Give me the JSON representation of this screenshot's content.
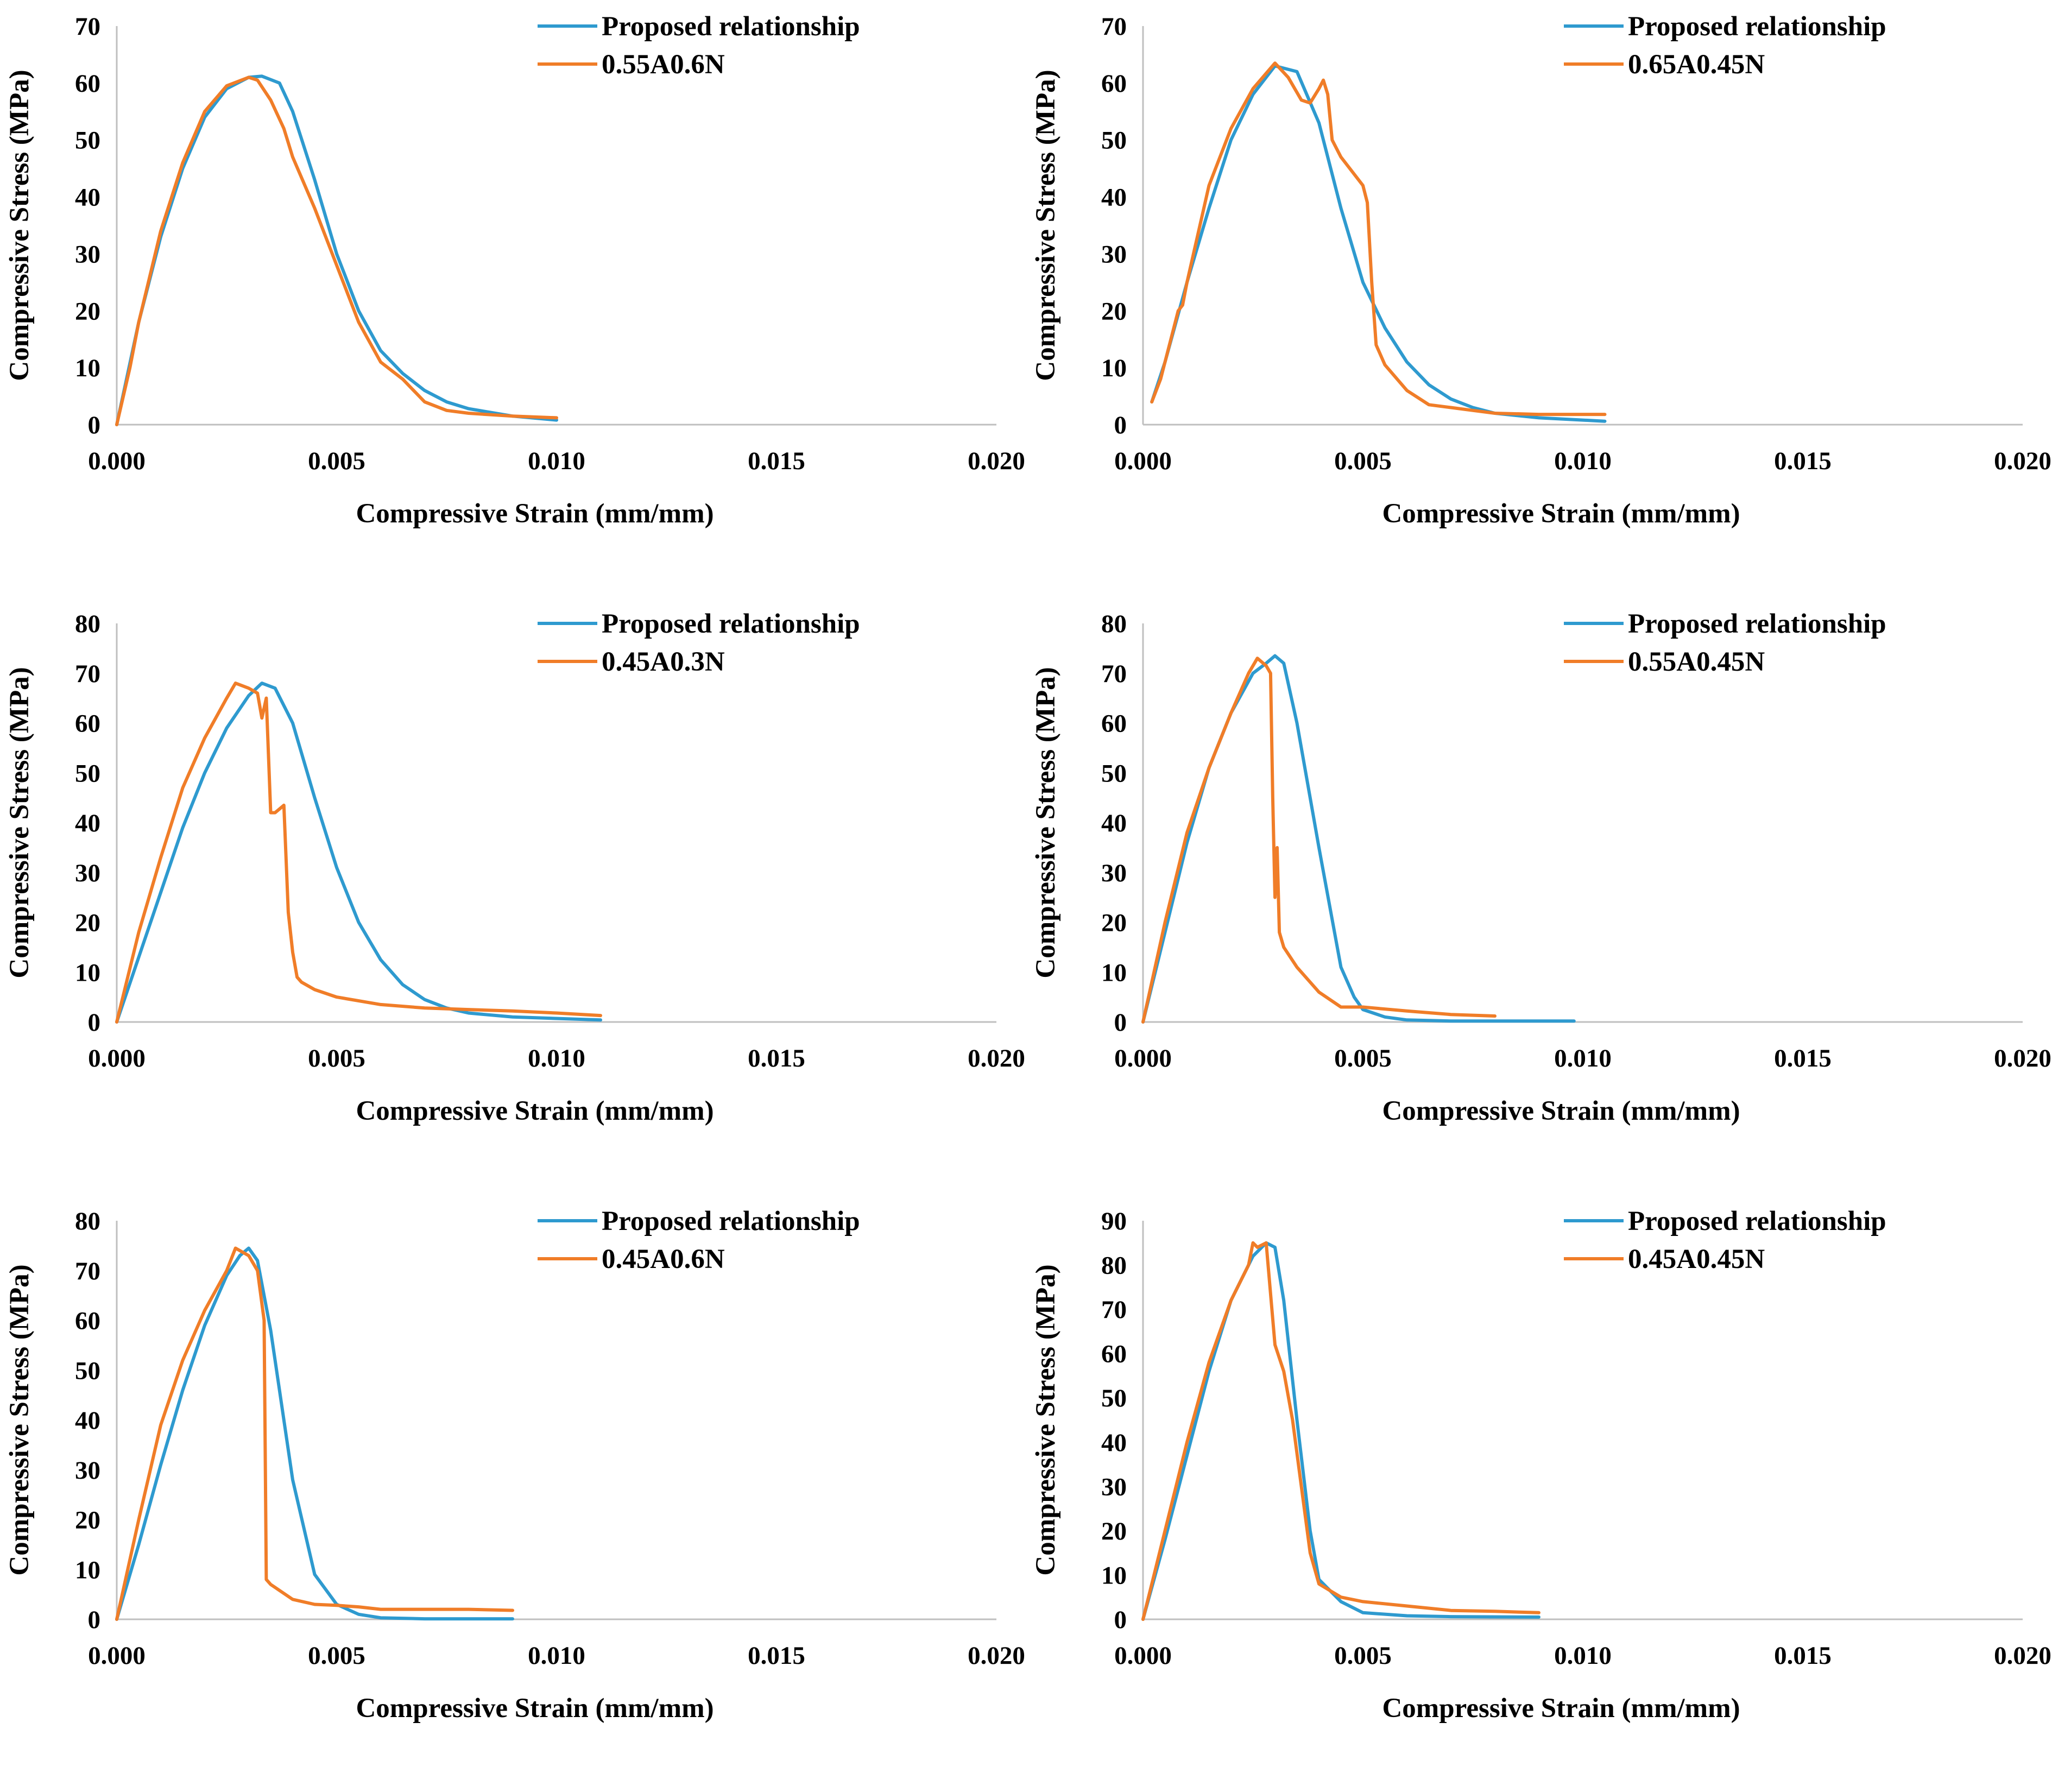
{
  "colors": {
    "proposed": "#2E9ACF",
    "experimental": "#F07D28",
    "axis": "#BFBFBF",
    "text": "#000000"
  },
  "chart_data": [
    {
      "type": "line",
      "xlabel": "Compressive Strain (mm/mm)",
      "ylabel": "Compressive Stress (MPa)",
      "xlim": [
        0,
        0.02
      ],
      "ylim": [
        0,
        70
      ],
      "xticks": [
        "0.000",
        "0.005",
        "0.010",
        "0.015",
        "0.020"
      ],
      "yticks": [
        "0",
        "10",
        "20",
        "30",
        "40",
        "50",
        "60",
        "70"
      ],
      "legend_position": "top-right",
      "grid": false,
      "series": [
        {
          "name": "Proposed relationship",
          "color": "#2E9ACF",
          "x": [
            0,
            0.0005,
            0.001,
            0.0015,
            0.002,
            0.0025,
            0.003,
            0.0033,
            0.0037,
            0.004,
            0.0045,
            0.005,
            0.0055,
            0.006,
            0.0065,
            0.007,
            0.0075,
            0.008,
            0.009,
            0.01
          ],
          "y": [
            0,
            18,
            33,
            45,
            54,
            59,
            61,
            61.2,
            60,
            55,
            43,
            30,
            20,
            13,
            9,
            6,
            4,
            2.8,
            1.5,
            0.8
          ]
        },
        {
          "name": "0.55A0.6N",
          "color": "#F07D28",
          "x": [
            0,
            0.0003,
            0.0005,
            0.001,
            0.0015,
            0.002,
            0.0025,
            0.003,
            0.0032,
            0.0035,
            0.0038,
            0.004,
            0.0045,
            0.005,
            0.0055,
            0.006,
            0.0065,
            0.007,
            0.0075,
            0.008,
            0.009,
            0.01
          ],
          "y": [
            0,
            10,
            18,
            34,
            46,
            55,
            59.5,
            61,
            60.5,
            57,
            52,
            47,
            38,
            28,
            18,
            11,
            8,
            4,
            2.5,
            2,
            1.5,
            1.2
          ]
        }
      ]
    },
    {
      "type": "line",
      "xlabel": "Compressive Strain (mm/mm)",
      "ylabel": "Compressive Stress (MPa)",
      "xlim": [
        0,
        0.02
      ],
      "ylim": [
        0,
        70
      ],
      "xticks": [
        "0.000",
        "0.005",
        "0.010",
        "0.015",
        "0.020"
      ],
      "yticks": [
        "0",
        "10",
        "20",
        "30",
        "40",
        "50",
        "60",
        "70"
      ],
      "legend_position": "top-right",
      "grid": false,
      "series": [
        {
          "name": "Proposed relationship",
          "color": "#2E9ACF",
          "x": [
            0.0002,
            0.0005,
            0.001,
            0.0015,
            0.002,
            0.0025,
            0.003,
            0.0035,
            0.004,
            0.0045,
            0.005,
            0.0055,
            0.006,
            0.0065,
            0.007,
            0.0075,
            0.008,
            0.009,
            0.0105
          ],
          "y": [
            4,
            11,
            25,
            38,
            50,
            58,
            63,
            62,
            53,
            38,
            25,
            17,
            11,
            7,
            4.5,
            3,
            2,
            1.2,
            0.6
          ]
        },
        {
          "name": "0.65A0.45N",
          "color": "#F07D28",
          "x": [
            0.0002,
            0.0004,
            0.0006,
            0.0008,
            0.0009,
            0.001,
            0.0015,
            0.002,
            0.0025,
            0.003,
            0.0033,
            0.0036,
            0.0038,
            0.004,
            0.0041,
            0.0042,
            0.0043,
            0.0045,
            0.005,
            0.0051,
            0.0052,
            0.0053,
            0.0055,
            0.006,
            0.0065,
            0.007,
            0.0075,
            0.008,
            0.009,
            0.0105
          ],
          "y": [
            4,
            8,
            14,
            20,
            21,
            25,
            42,
            52,
            59,
            63.5,
            61,
            57,
            56.5,
            59,
            60.5,
            58,
            50,
            47,
            42,
            39,
            25,
            14,
            10.5,
            6,
            3.5,
            3,
            2.5,
            2,
            1.8,
            1.8
          ]
        }
      ]
    },
    {
      "type": "line",
      "xlabel": "Compressive Strain (mm/mm)",
      "ylabel": "Compressive Stress (MPa)",
      "xlim": [
        0,
        0.02
      ],
      "ylim": [
        0,
        80
      ],
      "xticks": [
        "0.000",
        "0.005",
        "0.010",
        "0.015",
        "0.020"
      ],
      "yticks": [
        "0",
        "10",
        "20",
        "30",
        "40",
        "50",
        "60",
        "70",
        "80"
      ],
      "legend_position": "top-right",
      "grid": false,
      "series": [
        {
          "name": "Proposed relationship",
          "color": "#2E9ACF",
          "x": [
            0,
            0.0005,
            0.001,
            0.0015,
            0.002,
            0.0025,
            0.003,
            0.0033,
            0.0036,
            0.004,
            0.0045,
            0.005,
            0.0055,
            0.006,
            0.0065,
            0.007,
            0.0075,
            0.008,
            0.009,
            0.011
          ],
          "y": [
            0,
            13,
            26,
            39,
            50,
            59,
            65.5,
            68,
            67,
            60,
            45,
            31,
            20,
            12.5,
            7.5,
            4.5,
            2.8,
            1.8,
            1,
            0.4
          ]
        },
        {
          "name": "0.45A0.3N",
          "color": "#F07D28",
          "x": [
            0,
            0.0005,
            0.001,
            0.0015,
            0.002,
            0.0025,
            0.0027,
            0.003,
            0.0032,
            0.0033,
            0.0034,
            0.0035,
            0.0036,
            0.0038,
            0.0039,
            0.004,
            0.0041,
            0.0042,
            0.0045,
            0.005,
            0.006,
            0.007,
            0.008,
            0.009,
            0.01,
            0.011
          ],
          "y": [
            0,
            18,
            33,
            47,
            57,
            65,
            68,
            67,
            66,
            61,
            65,
            42,
            42,
            43.5,
            22,
            14,
            9,
            8,
            6.5,
            5,
            3.5,
            2.8,
            2.5,
            2.2,
            1.8,
            1.3
          ]
        }
      ]
    },
    {
      "type": "line",
      "xlabel": "Compressive Strain (mm/mm)",
      "ylabel": "Compressive Stress (MPa)",
      "xlim": [
        0,
        0.02
      ],
      "ylim": [
        0,
        80
      ],
      "xticks": [
        "0.000",
        "0.005",
        "0.010",
        "0.015",
        "0.020"
      ],
      "yticks": [
        "0",
        "10",
        "20",
        "30",
        "40",
        "50",
        "60",
        "70",
        "80"
      ],
      "legend_position": "top-right",
      "grid": false,
      "series": [
        {
          "name": "Proposed relationship",
          "color": "#2E9ACF",
          "x": [
            0,
            0.0005,
            0.001,
            0.0015,
            0.002,
            0.0025,
            0.0028,
            0.003,
            0.0032,
            0.0035,
            0.004,
            0.0045,
            0.0048,
            0.005,
            0.0055,
            0.006,
            0.007,
            0.0098
          ],
          "y": [
            0,
            18,
            36,
            51,
            62,
            70,
            72,
            73.5,
            72,
            60,
            35,
            11,
            5,
            2.5,
            1,
            0.4,
            0.2,
            0.2
          ]
        },
        {
          "name": "0.55A0.45N",
          "color": "#F07D28",
          "x": [
            0,
            0.0005,
            0.001,
            0.0015,
            0.002,
            0.0024,
            0.0026,
            0.0028,
            0.0029,
            0.00295,
            0.003,
            0.00305,
            0.0031,
            0.0032,
            0.0035,
            0.004,
            0.0045,
            0.005,
            0.006,
            0.007,
            0.008
          ],
          "y": [
            0,
            20,
            38,
            51,
            62,
            70,
            73,
            71.5,
            70,
            45,
            25,
            35,
            18,
            15,
            11,
            6,
            3,
            3,
            2.2,
            1.5,
            1.2
          ]
        }
      ]
    },
    {
      "type": "line",
      "xlabel": "Compressive Strain (mm/mm)",
      "ylabel": "Compressive Stress (MPa)",
      "xlim": [
        0,
        0.02
      ],
      "ylim": [
        0,
        80
      ],
      "xticks": [
        "0.000",
        "0.005",
        "0.010",
        "0.015",
        "0.020"
      ],
      "yticks": [
        "0",
        "10",
        "20",
        "30",
        "40",
        "50",
        "60",
        "70",
        "80"
      ],
      "legend_position": "top-right",
      "grid": false,
      "series": [
        {
          "name": "Proposed relationship",
          "color": "#2E9ACF",
          "x": [
            0,
            0.0005,
            0.001,
            0.0015,
            0.002,
            0.0025,
            0.0028,
            0.003,
            0.0032,
            0.0035,
            0.004,
            0.0045,
            0.005,
            0.0055,
            0.006,
            0.007,
            0.009
          ],
          "y": [
            0,
            15,
            31,
            46,
            59,
            69,
            73,
            74.5,
            72,
            58,
            28,
            9,
            3,
            1,
            0.3,
            0.1,
            0.1
          ]
        },
        {
          "name": "0.45A0.6N",
          "color": "#F07D28",
          "x": [
            0,
            0.0003,
            0.0005,
            0.001,
            0.0015,
            0.002,
            0.0025,
            0.0027,
            0.003,
            0.0032,
            0.00335,
            0.0034,
            0.0035,
            0.004,
            0.0045,
            0.005,
            0.0055,
            0.006,
            0.007,
            0.008,
            0.009
          ],
          "y": [
            0,
            12,
            20,
            39,
            52,
            62,
            70,
            74.5,
            73,
            70,
            60,
            8,
            7,
            4,
            3,
            2.8,
            2.5,
            2,
            2,
            2,
            1.8
          ]
        }
      ]
    },
    {
      "type": "line",
      "xlabel": "Compressive Strain (mm/mm)",
      "ylabel": "Compressive Stress (MPa)",
      "xlim": [
        0,
        0.02
      ],
      "ylim": [
        0,
        90
      ],
      "xticks": [
        "0.000",
        "0.005",
        "0.010",
        "0.015",
        "0.020"
      ],
      "yticks": [
        "0",
        "10",
        "20",
        "30",
        "40",
        "50",
        "60",
        "70",
        "80",
        "90"
      ],
      "legend_position": "top-right",
      "grid": false,
      "series": [
        {
          "name": "Proposed relationship",
          "color": "#2E9ACF",
          "x": [
            0,
            0.0005,
            0.001,
            0.0015,
            0.002,
            0.0025,
            0.0028,
            0.003,
            0.0032,
            0.0035,
            0.0038,
            0.004,
            0.0045,
            0.005,
            0.006,
            0.007,
            0.009
          ],
          "y": [
            0,
            18,
            37,
            56,
            72,
            82,
            85,
            84,
            72,
            45,
            20,
            9,
            4,
            1.5,
            0.8,
            0.6,
            0.5
          ]
        },
        {
          "name": "0.45A0.45N",
          "color": "#F07D28",
          "x": [
            0,
            0.0005,
            0.001,
            0.0015,
            0.002,
            0.0024,
            0.0025,
            0.0026,
            0.0028,
            0.003,
            0.0032,
            0.0034,
            0.0036,
            0.0038,
            0.004,
            0.0045,
            0.005,
            0.006,
            0.007,
            0.008,
            0.009
          ],
          "y": [
            0,
            20,
            40,
            58,
            72,
            80,
            85,
            84,
            85,
            62,
            56,
            45,
            30,
            15,
            8,
            5,
            4,
            3,
            2,
            1.8,
            1.5
          ]
        }
      ]
    }
  ]
}
